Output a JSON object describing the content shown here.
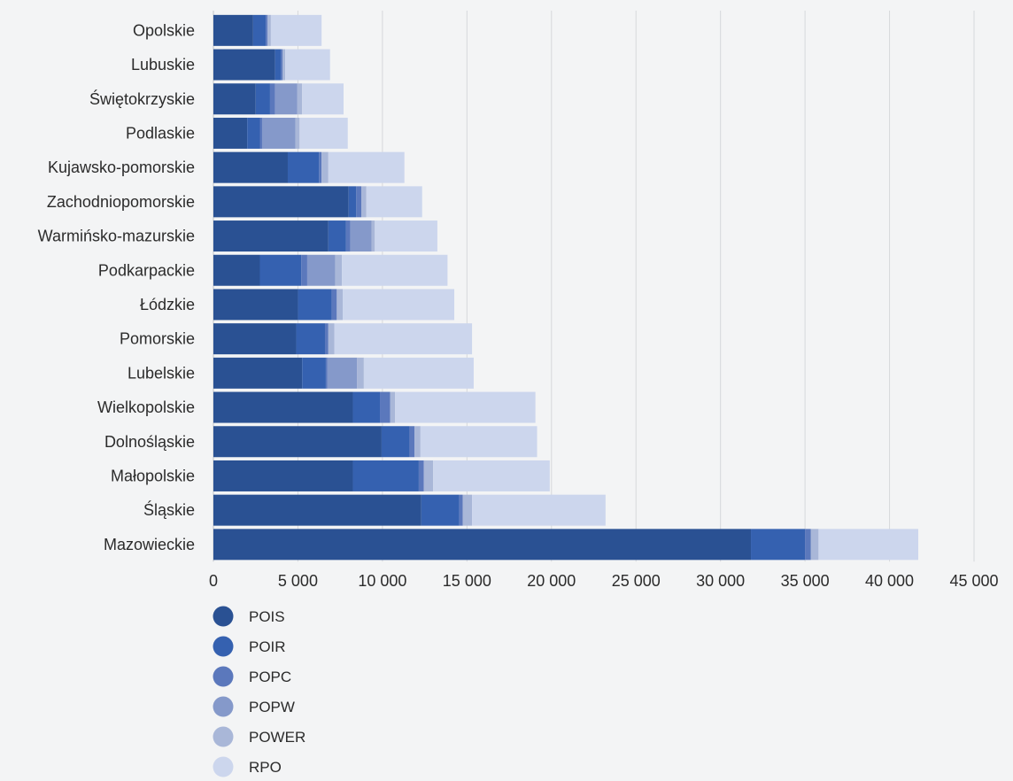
{
  "chart_data": {
    "type": "bar",
    "orientation": "horizontal",
    "stacked": true,
    "title": "",
    "xlabel": "",
    "ylabel": "",
    "xlim": [
      0,
      45000
    ],
    "ticks": [
      "0",
      "5 000",
      "10 000",
      "15 000",
      "20 000",
      "25 000",
      "30 000",
      "35 000",
      "40 000",
      "45 000"
    ],
    "grid": "vertical",
    "legend_position": "bottom",
    "categories": [
      "Opolskie",
      "Lubuskie",
      "Świętokrzyskie",
      "Podlaskie",
      "Kujawsko-pomorskie",
      "Zachodniopomorskie",
      "Warmińsko-mazurskie",
      "Podkarpackie",
      "Łódzkie",
      "Pomorskie",
      "Lubelskie",
      "Wielkopolskie",
      "Dolnośląskie",
      "Małopolskie",
      "Śląskie",
      "Mazowieckie"
    ],
    "series": [
      {
        "name": "POIS",
        "color": "#2a5193",
        "values": [
          2350,
          3650,
          2500,
          2000,
          4400,
          8000,
          6800,
          2750,
          5000,
          4900,
          5250,
          8250,
          9950,
          8250,
          12300,
          31800
        ]
      },
      {
        "name": "POIR",
        "color": "#3561b0",
        "values": [
          750,
          350,
          850,
          750,
          1850,
          450,
          1050,
          2450,
          2000,
          1700,
          1400,
          1600,
          1650,
          3900,
          2250,
          3200
        ]
      },
      {
        "name": "POPC",
        "color": "#5b78bc",
        "values": [
          100,
          100,
          300,
          150,
          150,
          300,
          250,
          350,
          300,
          200,
          100,
          600,
          300,
          300,
          200,
          350
        ]
      },
      {
        "name": "POPW",
        "color": "#8599ca",
        "values": [
          0,
          0,
          1300,
          1950,
          0,
          0,
          1250,
          1650,
          0,
          0,
          1750,
          0,
          0,
          0,
          0,
          0
        ]
      },
      {
        "name": "POWER",
        "color": "#a9b7d8",
        "values": [
          200,
          150,
          300,
          250,
          400,
          300,
          200,
          400,
          350,
          350,
          400,
          300,
          350,
          550,
          550,
          450
        ]
      },
      {
        "name": "RPO",
        "color": "#ccd6ed",
        "values": [
          3000,
          2650,
          2450,
          2850,
          4500,
          3300,
          3700,
          6250,
          6600,
          8150,
          6500,
          8300,
          6900,
          6900,
          7900,
          5900
        ]
      }
    ]
  }
}
